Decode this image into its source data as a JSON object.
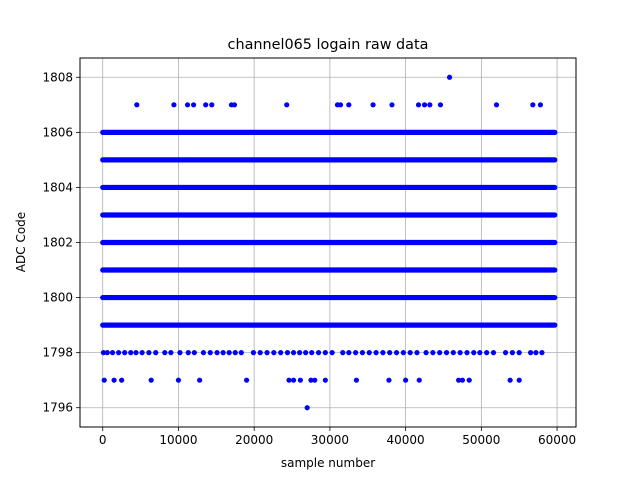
{
  "chart_data": {
    "type": "scatter",
    "title": "channel065 logain raw data",
    "xlabel": "sample number",
    "ylabel": "ADC Code",
    "xlim": [
      -3000,
      62500
    ],
    "ylim": [
      1795.3,
      1808.7
    ],
    "xticks": [
      0,
      10000,
      20000,
      30000,
      40000,
      50000,
      60000
    ],
    "yticks": [
      1796,
      1798,
      1800,
      1802,
      1804,
      1806,
      1808
    ],
    "grid": true,
    "marker_color": "#0000ff",
    "dense_bands": [
      {
        "y": 1799,
        "x_range": [
          0,
          59700
        ]
      },
      {
        "y": 1800,
        "x_range": [
          0,
          59700
        ]
      },
      {
        "y": 1801,
        "x_range": [
          0,
          59700
        ]
      },
      {
        "y": 1802,
        "x_range": [
          0,
          59700
        ]
      },
      {
        "y": 1803,
        "x_range": [
          0,
          59700
        ]
      },
      {
        "y": 1804,
        "x_range": [
          0,
          59700
        ]
      },
      {
        "y": 1805,
        "x_range": [
          0,
          59700
        ]
      },
      {
        "y": 1806,
        "x_range": [
          0,
          59700
        ]
      }
    ],
    "sparse_points": [
      {
        "x": 27000,
        "y": 1796
      },
      {
        "x": 200,
        "y": 1797
      },
      {
        "x": 1500,
        "y": 1797
      },
      {
        "x": 2500,
        "y": 1797
      },
      {
        "x": 6400,
        "y": 1797
      },
      {
        "x": 10000,
        "y": 1797
      },
      {
        "x": 12800,
        "y": 1797
      },
      {
        "x": 19000,
        "y": 1797
      },
      {
        "x": 24600,
        "y": 1797
      },
      {
        "x": 25200,
        "y": 1797
      },
      {
        "x": 26100,
        "y": 1797
      },
      {
        "x": 27500,
        "y": 1797
      },
      {
        "x": 28000,
        "y": 1797
      },
      {
        "x": 29400,
        "y": 1797
      },
      {
        "x": 33500,
        "y": 1797
      },
      {
        "x": 37800,
        "y": 1797
      },
      {
        "x": 40000,
        "y": 1797
      },
      {
        "x": 41800,
        "y": 1797
      },
      {
        "x": 47000,
        "y": 1797
      },
      {
        "x": 47500,
        "y": 1797
      },
      {
        "x": 48400,
        "y": 1797
      },
      {
        "x": 53800,
        "y": 1797
      },
      {
        "x": 55000,
        "y": 1797
      },
      {
        "x": 4500,
        "y": 1807
      },
      {
        "x": 9400,
        "y": 1807
      },
      {
        "x": 11200,
        "y": 1807
      },
      {
        "x": 12000,
        "y": 1807
      },
      {
        "x": 13600,
        "y": 1807
      },
      {
        "x": 14400,
        "y": 1807
      },
      {
        "x": 17000,
        "y": 1807
      },
      {
        "x": 17400,
        "y": 1807
      },
      {
        "x": 24300,
        "y": 1807
      },
      {
        "x": 31000,
        "y": 1807
      },
      {
        "x": 31400,
        "y": 1807
      },
      {
        "x": 32500,
        "y": 1807
      },
      {
        "x": 35700,
        "y": 1807
      },
      {
        "x": 38200,
        "y": 1807
      },
      {
        "x": 41700,
        "y": 1807
      },
      {
        "x": 42500,
        "y": 1807
      },
      {
        "x": 43200,
        "y": 1807
      },
      {
        "x": 44600,
        "y": 1807
      },
      {
        "x": 52000,
        "y": 1807
      },
      {
        "x": 56800,
        "y": 1807
      },
      {
        "x": 57800,
        "y": 1807
      },
      {
        "x": 45800,
        "y": 1808
      }
    ],
    "y1798_points_x": [
      100,
      600,
      1300,
      2100,
      2900,
      3700,
      4400,
      5200,
      6100,
      7000,
      8200,
      9000,
      10200,
      11300,
      12100,
      13300,
      14200,
      15100,
      15900,
      16700,
      17500,
      18300,
      19900,
      20800,
      21700,
      22600,
      23500,
      24400,
      25200,
      26000,
      26800,
      27600,
      28500,
      29400,
      30300,
      31700,
      32500,
      33400,
      34300,
      35200,
      36100,
      37000,
      37900,
      38800,
      39700,
      40600,
      41500,
      42700,
      43600,
      44500,
      45400,
      46300,
      47200,
      48100,
      49000,
      49800,
      50700,
      51600,
      53200,
      54100,
      55000,
      56500,
      57200,
      58000
    ]
  }
}
